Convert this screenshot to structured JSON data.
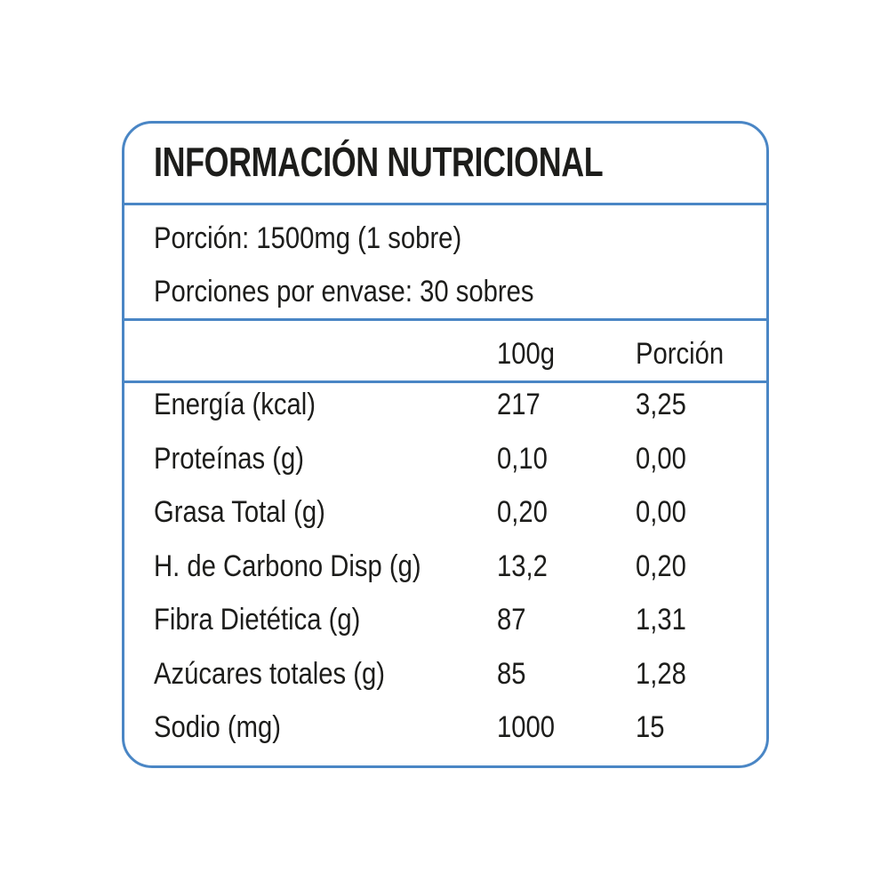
{
  "label": {
    "title": "INFORMACIÓN NUTRICIONAL",
    "serving": "Porción: 1500mg (1 sobre)",
    "servings_per_container": "Porciones por envase: 30 sobres",
    "border_color": "#4a86c5",
    "text_color": "#1d1d1b",
    "columns": {
      "per_100g": "100g",
      "per_portion": "Porción"
    },
    "rows": [
      {
        "name": "Energía (kcal)",
        "per_100g": "217",
        "per_portion": "3,25"
      },
      {
        "name": "Proteínas (g)",
        "per_100g": "0,10",
        "per_portion": "0,00"
      },
      {
        "name": "Grasa Total (g)",
        "per_100g": "0,20",
        "per_portion": "0,00"
      },
      {
        "name": "H. de Carbono Disp (g)",
        "per_100g": "13,2",
        "per_portion": "0,20"
      },
      {
        "name": "Fibra Dietética (g)",
        "per_100g": "87",
        "per_portion": "1,31"
      },
      {
        "name": "Azúcares totales (g)",
        "per_100g": "85",
        "per_portion": "1,28"
      },
      {
        "name": "Sodio (mg)",
        "per_100g": "1000",
        "per_portion": "15"
      }
    ]
  }
}
